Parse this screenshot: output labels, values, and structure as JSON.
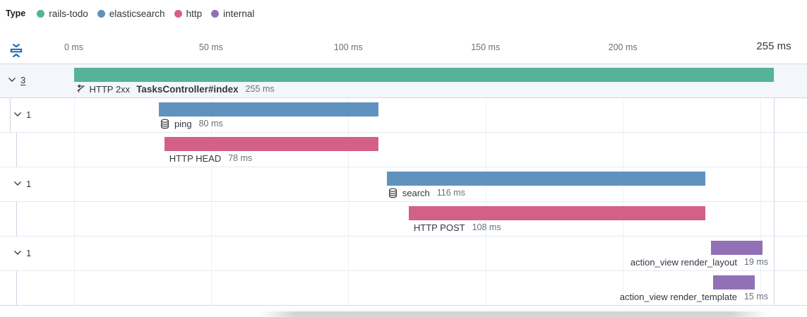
{
  "legend": {
    "title": "Type",
    "items": [
      {
        "label": "rails-todo",
        "type": "rails-todo"
      },
      {
        "label": "elasticsearch",
        "type": "elasticsearch"
      },
      {
        "label": "http",
        "type": "http"
      },
      {
        "label": "internal",
        "type": "internal"
      }
    ]
  },
  "colors": {
    "rails-todo": "#54B399",
    "elasticsearch": "#6092C0",
    "http": "#D36086",
    "internal": "#9170B8",
    "text": "#343741",
    "muted": "#69707d",
    "grid": "#edf1f6",
    "grid_strong": "#d3dae6",
    "row_border": "#e4eaf2",
    "selected_row_bg": "#f3f6fb",
    "guide": "#ccd6e4",
    "fold_icon_blue": "#0f62b5"
  },
  "axis": {
    "ticks": [
      {
        "ms": 0,
        "label": "0 ms"
      },
      {
        "ms": 50,
        "label": "50 ms"
      },
      {
        "ms": 100,
        "label": "100 ms"
      },
      {
        "ms": 150,
        "label": "150 ms"
      },
      {
        "ms": 200,
        "label": "200 ms"
      }
    ],
    "end_tick": {
      "ms": 255,
      "label": "255 ms"
    }
  },
  "chart_data": {
    "type": "waterfall-timeline",
    "unit": "ms",
    "xlim": [
      0,
      255
    ],
    "gridlines_ms": [
      0,
      50,
      100,
      150,
      200,
      250
    ],
    "end_line_ms": 255,
    "rows": [
      {
        "kind": "transaction",
        "prefix": "HTTP 2xx",
        "name": "TasksController#index",
        "start_ms": 0,
        "duration_ms": 255,
        "duration_label": "255 ms",
        "color": "rails-todo",
        "icon": "transaction-icon",
        "toggle": {
          "count": "3",
          "underline": true
        },
        "align": "left"
      },
      {
        "kind": "span",
        "name": "ping",
        "start_ms": 31,
        "duration_ms": 80,
        "duration_label": "80 ms",
        "color": "elasticsearch",
        "icon": "database-icon",
        "toggle": {
          "count": "1"
        },
        "align": "left",
        "guide_level": 1
      },
      {
        "kind": "span",
        "name": "HTTP HEAD",
        "start_ms": 33,
        "duration_ms": 78,
        "duration_label": "78 ms",
        "color": "http",
        "align": "left",
        "guide_level": 2
      },
      {
        "kind": "span",
        "name": "search",
        "start_ms": 114,
        "duration_ms": 116,
        "duration_label": "116 ms",
        "color": "elasticsearch",
        "icon": "database-icon",
        "toggle": {
          "count": "1"
        },
        "align": "left"
      },
      {
        "kind": "span",
        "name": "HTTP POST",
        "start_ms": 122,
        "duration_ms": 108,
        "duration_label": "108 ms",
        "color": "http",
        "align": "left",
        "guide_level": 2
      },
      {
        "kind": "span",
        "name": "action_view render_layout",
        "start_ms": 232,
        "duration_ms": 19,
        "duration_label": "19 ms",
        "color": "internal",
        "toggle": {
          "count": "1"
        },
        "align": "right"
      },
      {
        "kind": "span",
        "name": "action_view render_template",
        "start_ms": 233,
        "duration_ms": 15,
        "duration_label": "15 ms",
        "color": "internal",
        "align": "right",
        "guide_level": 2
      }
    ]
  }
}
